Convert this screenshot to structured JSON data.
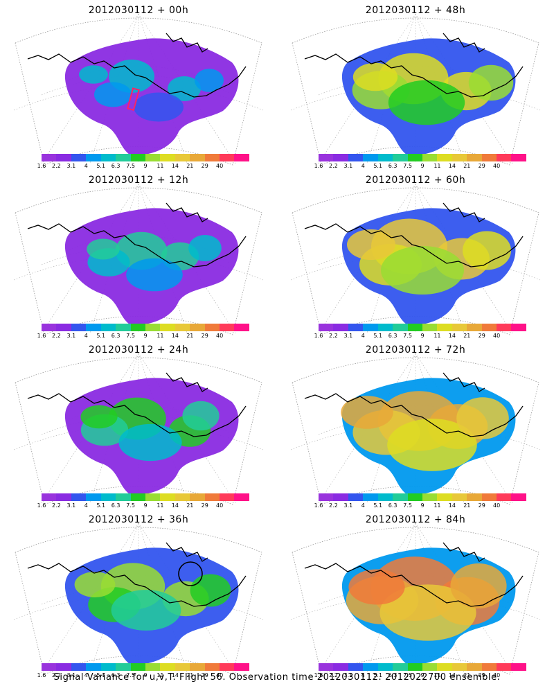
{
  "panels": [
    {
      "title": "2012030112 + 00h",
      "level": 0
    },
    {
      "title": "2012030112 + 48h",
      "level": 4
    },
    {
      "title": "2012030112 + 12h",
      "level": 1
    },
    {
      "title": "2012030112 + 60h",
      "level": 5
    },
    {
      "title": "2012030112 + 24h",
      "level": 2
    },
    {
      "title": "2012030112 + 72h",
      "level": 6
    },
    {
      "title": "2012030112 + 36h",
      "level": 3
    },
    {
      "title": "2012030112 + 84h",
      "level": 7
    }
  ],
  "colorbar": {
    "colors": [
      "#9933dd",
      "#8a2be2",
      "#3355ee",
      "#0099ee",
      "#00bbcc",
      "#22cc99",
      "#22cc22",
      "#99dd33",
      "#dddd22",
      "#e8c838",
      "#e8a838",
      "#f07a3a",
      "#ff3a5a",
      "#ff1188"
    ],
    "tick_labels": [
      "1.6",
      "2.2",
      "3.1",
      "4",
      "5.1",
      "6.3",
      "7.5",
      "9",
      "11",
      "14",
      "21",
      "29",
      "40"
    ]
  },
  "annotations": {
    "box_panel": "2012030112 + 00h",
    "circle_panel": "2012030112 + 36h",
    "box_color": "#ff2266",
    "circle_color": "#000000"
  },
  "caption": "Signal Variance for u,v,T. Flight 56. Observation time 2012030112. 2012022700 ensemble."
}
